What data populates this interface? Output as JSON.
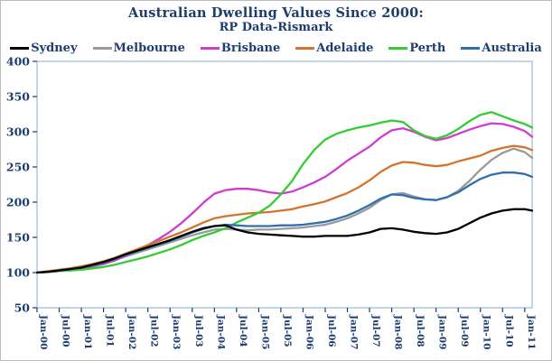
{
  "colors": {
    "text_navy": "#1c3d6e",
    "plot_border": "#a9c4dc",
    "image_border": "#bdbdbd",
    "background": "#ffffff"
  },
  "chart_data": {
    "type": "line",
    "title": "Australian Dwelling Values Since 2000:",
    "subtitle": "RP Data-Rismark",
    "grid": false,
    "legend_position": "top",
    "ylim": [
      50,
      400
    ],
    "y_ticks": [
      50,
      100,
      150,
      200,
      250,
      300,
      350,
      400
    ],
    "x_tick_labels": [
      "Jan-00",
      "Jul-00",
      "Jan-01",
      "Jul-01",
      "Jan-02",
      "Jul-02",
      "Jan-03",
      "Jul-03",
      "Jan-04",
      "Jul-04",
      "Jan-05",
      "Jul-05",
      "Jan-06",
      "Jul-06",
      "Jan-07",
      "Jul-07",
      "Jan-08",
      "Jul-08",
      "Jan-09",
      "Jul-09",
      "Jan-10",
      "Jul-10",
      "Jan-11"
    ],
    "x_tick_months": [
      0,
      6,
      12,
      18,
      24,
      30,
      36,
      42,
      48,
      54,
      60,
      66,
      72,
      78,
      84,
      90,
      96,
      102,
      108,
      114,
      120,
      126,
      132
    ],
    "x_unit": "months since Jan-2000 (quarterly samples, index Jan-00 = 100)",
    "x": [
      0,
      3,
      6,
      9,
      12,
      15,
      18,
      21,
      24,
      27,
      30,
      33,
      36,
      39,
      42,
      45,
      48,
      51,
      54,
      57,
      60,
      63,
      66,
      69,
      72,
      75,
      78,
      81,
      84,
      87,
      90,
      93,
      96,
      99,
      102,
      105,
      108,
      111,
      114,
      117,
      120,
      123,
      126,
      129,
      132,
      134
    ],
    "series": [
      {
        "name": "Sydney",
        "color": "#000000",
        "values": [
          100,
          101,
          103,
          105,
          107,
          111,
          115,
          120,
          126,
          131,
          136,
          141,
          146,
          152,
          158,
          163,
          166,
          167,
          161,
          157,
          155,
          154,
          153,
          152,
          151,
          151,
          152,
          152,
          152,
          154,
          157,
          162,
          163,
          161,
          158,
          156,
          155,
          157,
          162,
          170,
          178,
          184,
          188,
          190,
          190,
          188
        ]
      },
      {
        "name": "Melbourne",
        "color": "#9a9a9a",
        "values": [
          100,
          101,
          103,
          105,
          106,
          109,
          113,
          118,
          123,
          128,
          133,
          138,
          143,
          148,
          153,
          157,
          161,
          162,
          161,
          160,
          161,
          161,
          162,
          163,
          164,
          166,
          168,
          172,
          177,
          184,
          192,
          203,
          211,
          213,
          208,
          204,
          203,
          207,
          216,
          230,
          246,
          260,
          270,
          276,
          271,
          263
        ]
      },
      {
        "name": "Brisbane",
        "color": "#cf3dcf",
        "values": [
          100,
          101,
          102,
          104,
          106,
          109,
          112,
          117,
          124,
          131,
          139,
          148,
          158,
          170,
          184,
          199,
          212,
          217,
          219,
          219,
          217,
          214,
          212,
          215,
          221,
          228,
          236,
          247,
          259,
          269,
          279,
          292,
          302,
          305,
          300,
          293,
          288,
          291,
          297,
          303,
          308,
          312,
          311,
          307,
          301,
          293
        ]
      },
      {
        "name": "Adelaide",
        "color": "#d4742c",
        "values": [
          100,
          102,
          104,
          106,
          109,
          112,
          116,
          121,
          127,
          133,
          139,
          145,
          151,
          157,
          164,
          171,
          177,
          180,
          182,
          184,
          185,
          186,
          188,
          190,
          194,
          197,
          201,
          207,
          213,
          221,
          231,
          243,
          252,
          257,
          256,
          253,
          251,
          253,
          258,
          262,
          266,
          273,
          277,
          280,
          278,
          274
        ]
      },
      {
        "name": "Perth",
        "color": "#33cc33",
        "values": [
          100,
          101,
          102,
          103,
          104,
          106,
          108,
          111,
          115,
          119,
          123,
          128,
          133,
          139,
          146,
          152,
          157,
          163,
          171,
          178,
          185,
          195,
          211,
          230,
          254,
          274,
          289,
          297,
          302,
          306,
          309,
          313,
          316,
          314,
          302,
          294,
          290,
          295,
          304,
          315,
          324,
          328,
          322,
          316,
          311,
          306
        ]
      },
      {
        "name": "Australia",
        "color": "#2e6fad",
        "values": [
          100,
          101,
          103,
          105,
          107,
          110,
          114,
          119,
          125,
          130,
          135,
          140,
          145,
          151,
          157,
          162,
          166,
          168,
          167,
          166,
          166,
          166,
          167,
          167,
          168,
          170,
          172,
          176,
          181,
          188,
          196,
          205,
          211,
          210,
          206,
          204,
          203,
          207,
          214,
          224,
          233,
          239,
          242,
          242,
          240,
          236
        ]
      }
    ]
  }
}
